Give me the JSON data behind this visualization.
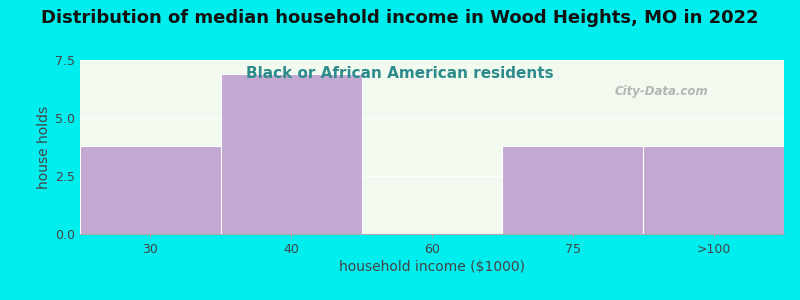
{
  "title": "Distribution of median household income in Wood Heights, MO in 2022",
  "subtitle": "Black or African American residents",
  "xlabel": "household income ($1000)",
  "ylabel": "house holds",
  "categories": [
    "30",
    "40",
    "60",
    "75",
    ">100"
  ],
  "values": [
    3.8,
    6.9,
    0,
    3.8,
    3.8
  ],
  "bar_color": "#C3A8D1",
  "background_color": "#00EEEE",
  "plot_bg_color": "#F2FAF0",
  "ylim": [
    0,
    7.5
  ],
  "yticks": [
    0,
    2.5,
    5,
    7.5
  ],
  "title_fontsize": 13,
  "subtitle_fontsize": 11,
  "axis_label_fontsize": 10,
  "watermark": "City-Data.com"
}
